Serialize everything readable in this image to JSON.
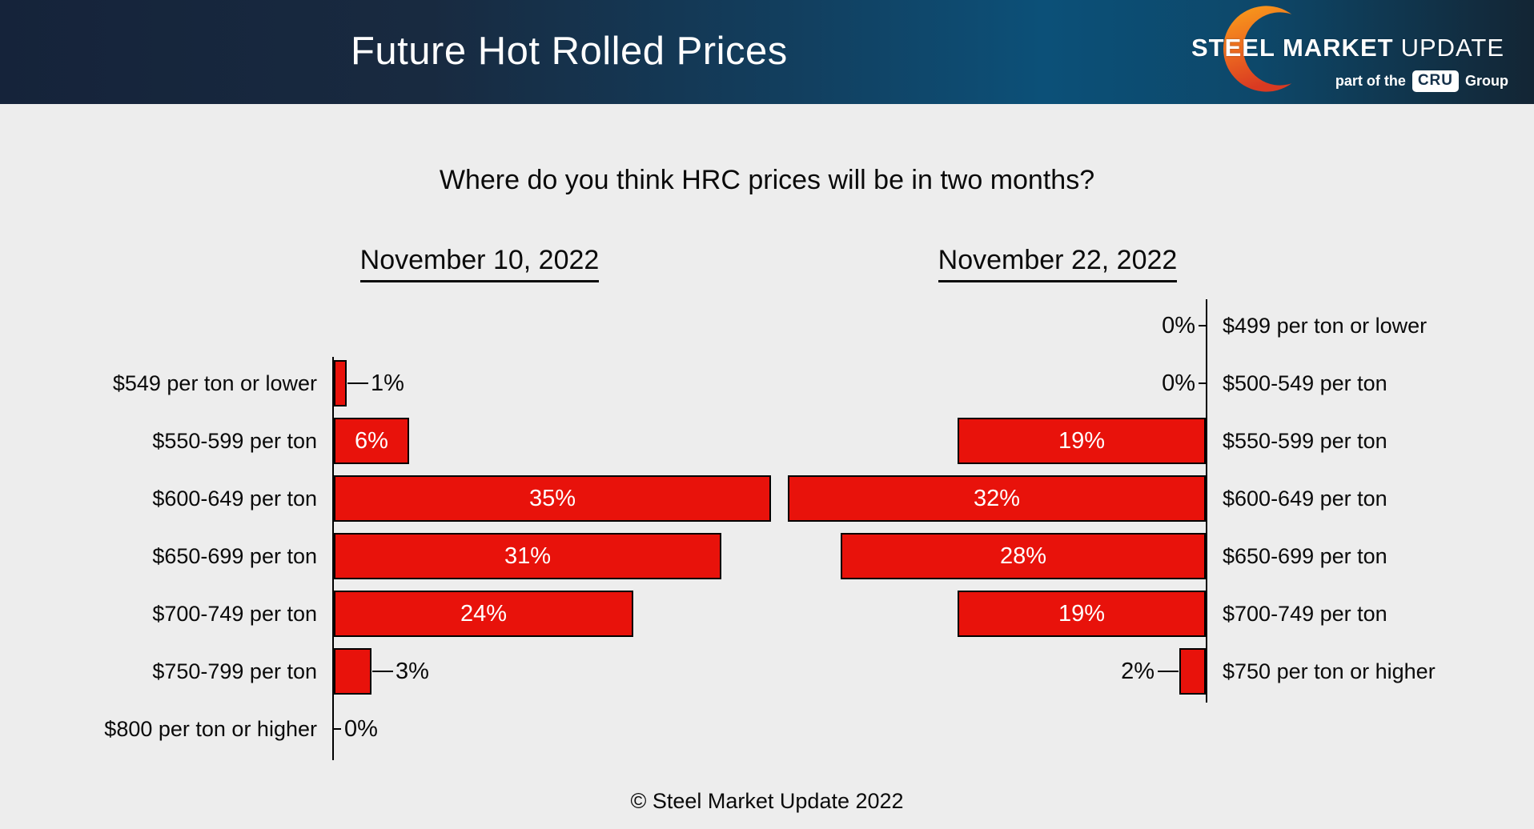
{
  "header": {
    "title": "Future Hot Rolled Prices",
    "logo": {
      "brand_bold": "STEEL MARKET",
      "brand_light": "UPDATE",
      "tagline_prefix": "part of the",
      "tagline_box": "CRU",
      "tagline_suffix": "Group",
      "crescent_top_color": "#F9A01B",
      "crescent_bottom_color": "#D93A22"
    }
  },
  "footer": "© Steel Market Update 2022",
  "colors": {
    "bar_fill": "#e8120b",
    "background": "#ededed",
    "header_left": "#15233a",
    "header_mid": "#0c5078",
    "axis": "#000000"
  },
  "chart_data": {
    "type": "bar",
    "orientation": "horizontal-mirrored-pair",
    "title": "Where do you think HRC prices will be in two months?",
    "value_unit": "%",
    "legend": "none",
    "grid": false,
    "charts": [
      {
        "title": "November 10, 2022",
        "side": "left",
        "categories": [
          "$549 per ton or lower",
          "$550-599 per ton",
          "$600-649 per ton",
          "$650-699 per ton",
          "$700-749 per ton",
          "$750-799 per ton",
          "$800 per ton or higher"
        ],
        "values": [
          1,
          6,
          35,
          31,
          24,
          3,
          0
        ],
        "labels": [
          "1%",
          "6%",
          "35%",
          "31%",
          "24%",
          "3%",
          "0%"
        ],
        "xlim": [
          0,
          35
        ],
        "row_offset": 1
      },
      {
        "title": "November 22, 2022",
        "side": "right",
        "categories": [
          "$499 per ton or lower",
          "$500-549 per ton",
          "$550-599 per ton",
          "$600-649 per ton",
          "$650-699 per ton",
          "$700-749 per ton",
          "$750 per ton or higher"
        ],
        "values": [
          0,
          0,
          19,
          32,
          28,
          19,
          2
        ],
        "labels": [
          "0%",
          "0%",
          "19%",
          "32%",
          "28%",
          "19%",
          "2%"
        ],
        "xlim": [
          0,
          32
        ],
        "row_offset": 0
      }
    ]
  }
}
